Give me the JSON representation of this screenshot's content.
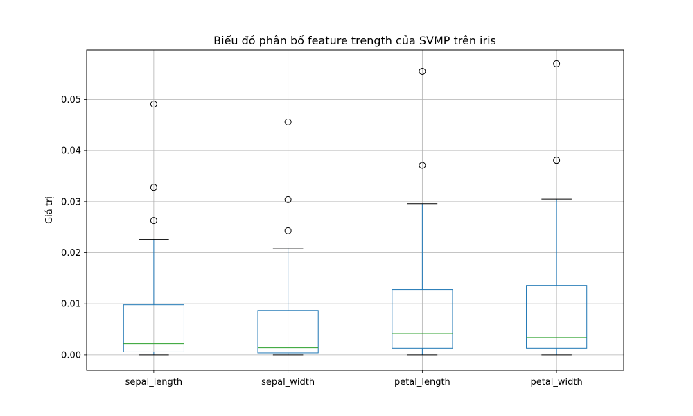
{
  "chart_data": {
    "type": "box",
    "title": "Biểu đồ phân bố feature trength của SVMP trên iris",
    "xlabel": "",
    "ylabel": "Giá trị",
    "ylim": [
      -0.003,
      0.0597
    ],
    "yticks": [
      0.0,
      0.01,
      0.02,
      0.03,
      0.04,
      0.05
    ],
    "ytick_labels": [
      "0.00",
      "0.01",
      "0.02",
      "0.03",
      "0.04",
      "0.05"
    ],
    "grid": true,
    "colors": {
      "box": "#1f77b4",
      "median": "#2ca02c",
      "whisker_cap": "#000000",
      "grid": "#b0b0b0"
    },
    "categories": [
      "sepal_length",
      "sepal_width",
      "petal_length",
      "petal_width"
    ],
    "boxes": [
      {
        "name": "sepal_length",
        "whisker_low": 0.0,
        "q1": 0.0006,
        "median": 0.0022,
        "q3": 0.0098,
        "whisker_high": 0.0226,
        "outliers": [
          0.0263,
          0.0328,
          0.0491
        ]
      },
      {
        "name": "sepal_width",
        "whisker_low": 0.0,
        "q1": 0.0004,
        "median": 0.0014,
        "q3": 0.0087,
        "whisker_high": 0.0209,
        "outliers": [
          0.0243,
          0.0304,
          0.0456
        ]
      },
      {
        "name": "petal_length",
        "whisker_low": 0.0,
        "q1": 0.0013,
        "median": 0.0042,
        "q3": 0.0128,
        "whisker_high": 0.0296,
        "outliers": [
          0.0371,
          0.0555
        ]
      },
      {
        "name": "petal_width",
        "whisker_low": 0.0,
        "q1": 0.0013,
        "median": 0.0034,
        "q3": 0.0136,
        "whisker_high": 0.0305,
        "outliers": [
          0.0381,
          0.057
        ]
      }
    ]
  }
}
